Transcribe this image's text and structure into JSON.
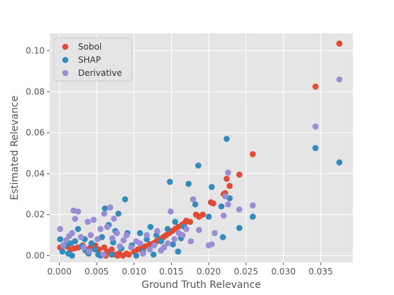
{
  "chart_data": {
    "type": "scatter",
    "xlabel": "Ground Truth Relevance",
    "ylabel": "Estimated Relevance",
    "xlim": [
      -0.0013,
      0.0393
    ],
    "ylim": [
      -0.0033,
      0.1085
    ],
    "x_ticks": [
      0.0,
      0.005,
      0.01,
      0.015,
      0.02,
      0.025,
      0.03,
      0.035
    ],
    "x_tick_labels": [
      "0.000",
      "0.005",
      "0.010",
      "0.015",
      "0.020",
      "0.025",
      "0.030",
      "0.035"
    ],
    "y_ticks": [
      0.0,
      0.02,
      0.04,
      0.06,
      0.08,
      0.1
    ],
    "y_tick_labels": [
      "0.00",
      "0.02",
      "0.04",
      "0.06",
      "0.08",
      "0.10"
    ],
    "grid": true,
    "legend_position": "top-left",
    "background_color": "#e5e5e5",
    "grid_color": "#ffffff",
    "series": [
      {
        "name": "Sobol",
        "color": "#e24a33",
        "points": [
          [
            0.0375,
            0.1035
          ],
          [
            0.0343,
            0.0825
          ],
          [
            0.0259,
            0.0495
          ],
          [
            0.0241,
            0.0395
          ],
          [
            0.0228,
            0.034
          ],
          [
            0.0224,
            0.0375
          ],
          [
            0.0222,
            0.0305
          ],
          [
            0.022,
            0.03
          ],
          [
            0.0203,
            0.026
          ],
          [
            0.0206,
            0.0255
          ],
          [
            0.0192,
            0.02
          ],
          [
            0.0187,
            0.019
          ],
          [
            0.0183,
            0.02
          ],
          [
            0.0175,
            0.0165
          ],
          [
            0.017,
            0.017
          ],
          [
            0.0168,
            0.016
          ],
          [
            0.0164,
            0.015
          ],
          [
            0.0159,
            0.014
          ],
          [
            0.0155,
            0.013
          ],
          [
            0.0151,
            0.012
          ],
          [
            0.0147,
            0.011
          ],
          [
            0.0143,
            0.01
          ],
          [
            0.0139,
            0.009
          ],
          [
            0.0135,
            0.008
          ],
          [
            0.013,
            0.007
          ],
          [
            0.0126,
            0.006
          ],
          [
            0.0121,
            0.0055
          ],
          [
            0.0115,
            0.0045
          ],
          [
            0.011,
            0.004
          ],
          [
            0.0105,
            0.003
          ],
          [
            0.01,
            0.002
          ],
          [
            0.0093,
            0.0005
          ],
          [
            0.009,
            0.001
          ],
          [
            0.0085,
            0.0
          ],
          [
            0.008,
            0.001
          ],
          [
            0.0075,
            0.0005
          ],
          [
            0.007,
            0.003
          ],
          [
            0.0064,
            0.002
          ],
          [
            0.006,
            0.004
          ],
          [
            0.0053,
            0.003
          ],
          [
            0.0048,
            0.005
          ],
          [
            0.0042,
            0.004
          ],
          [
            0.0037,
            0.003
          ],
          [
            0.0031,
            0.005
          ],
          [
            0.0025,
            0.004
          ],
          [
            0.002,
            0.0035
          ],
          [
            0.0015,
            0.003
          ],
          [
            0.001,
            0.0045
          ],
          [
            0.0005,
            0.005
          ],
          [
            0.0001,
            0.004
          ],
          [
            0.0062,
            0.0
          ],
          [
            0.0078,
            0.0
          ]
        ]
      },
      {
        "name": "SHAP",
        "color": "#348abd",
        "points": [
          [
            0.0375,
            0.0455
          ],
          [
            0.0343,
            0.0525
          ],
          [
            0.0259,
            0.019
          ],
          [
            0.0241,
            0.0135
          ],
          [
            0.0228,
            0.028
          ],
          [
            0.0224,
            0.057
          ],
          [
            0.0219,
            0.009
          ],
          [
            0.0217,
            0.024
          ],
          [
            0.0204,
            0.0335
          ],
          [
            0.02,
            0.019
          ],
          [
            0.0186,
            0.044
          ],
          [
            0.0182,
            0.025
          ],
          [
            0.0173,
            0.035
          ],
          [
            0.0167,
            0.014
          ],
          [
            0.0163,
            0.0085
          ],
          [
            0.0159,
            0.002
          ],
          [
            0.0155,
            0.0165
          ],
          [
            0.0152,
            0.0055
          ],
          [
            0.0148,
            0.036
          ],
          [
            0.0145,
            0.013
          ],
          [
            0.014,
            0.004
          ],
          [
            0.0136,
            0.007
          ],
          [
            0.013,
            0.01
          ],
          [
            0.0126,
            0.0005
          ],
          [
            0.0122,
            0.014
          ],
          [
            0.0117,
            0.008
          ],
          [
            0.0112,
            0.002
          ],
          [
            0.0108,
            0.011
          ],
          [
            0.0103,
            0.0
          ],
          [
            0.0097,
            0.005
          ],
          [
            0.0091,
            0.011
          ],
          [
            0.0088,
            0.0275
          ],
          [
            0.0083,
            0.0035
          ],
          [
            0.0079,
            0.0205
          ],
          [
            0.0075,
            0.012
          ],
          [
            0.007,
            0.0005
          ],
          [
            0.0066,
            0.015
          ],
          [
            0.0061,
            0.023
          ],
          [
            0.0057,
            0.009
          ],
          [
            0.0052,
            0.0005
          ],
          [
            0.0048,
            0.003
          ],
          [
            0.0043,
            0.006
          ],
          [
            0.0039,
            0.001
          ],
          [
            0.0034,
            0.008
          ],
          [
            0.003,
            0.0045
          ],
          [
            0.0025,
            0.013
          ],
          [
            0.0021,
            0.007
          ],
          [
            0.0017,
            0.0
          ],
          [
            0.0012,
            0.001
          ],
          [
            0.0008,
            0.005
          ],
          [
            0.0004,
            0.002
          ],
          [
            0.0001,
            0.008
          ],
          [
            0.0015,
            0.006
          ],
          [
            0.0035,
            0.0025
          ],
          [
            0.0055,
            0.0
          ],
          [
            0.0072,
            0.0065
          ]
        ]
      },
      {
        "name": "Derivative",
        "color": "#988ed5",
        "points": [
          [
            0.0375,
            0.086
          ],
          [
            0.0343,
            0.063
          ],
          [
            0.0259,
            0.0245
          ],
          [
            0.0241,
            0.0225
          ],
          [
            0.0226,
            0.0405
          ],
          [
            0.0226,
            0.025
          ],
          [
            0.0222,
            0.029
          ],
          [
            0.022,
            0.0195
          ],
          [
            0.0208,
            0.011
          ],
          [
            0.0204,
            0.0055
          ],
          [
            0.02,
            0.005
          ],
          [
            0.0187,
            0.0125
          ],
          [
            0.0179,
            0.0275
          ],
          [
            0.0176,
            0.007
          ],
          [
            0.017,
            0.013
          ],
          [
            0.0165,
            0.01
          ],
          [
            0.016,
            0.011
          ],
          [
            0.0154,
            0.008
          ],
          [
            0.0149,
            0.0215
          ],
          [
            0.0145,
            0.006
          ],
          [
            0.014,
            0.004
          ],
          [
            0.0136,
            0.0025
          ],
          [
            0.0131,
            0.012
          ],
          [
            0.0127,
            0.005
          ],
          [
            0.0121,
            0.003
          ],
          [
            0.0117,
            0.01
          ],
          [
            0.0112,
            0.001
          ],
          [
            0.0108,
            0.006
          ],
          [
            0.0103,
            0.007
          ],
          [
            0.0096,
            0.004
          ],
          [
            0.009,
            0.01
          ],
          [
            0.0086,
            0.0075
          ],
          [
            0.0081,
            0.0045
          ],
          [
            0.0077,
            0.011
          ],
          [
            0.0073,
            0.018
          ],
          [
            0.0068,
            0.0235
          ],
          [
            0.0064,
            0.014
          ],
          [
            0.006,
            0.0205
          ],
          [
            0.0055,
            0.013
          ],
          [
            0.0051,
            0.008
          ],
          [
            0.0046,
            0.0175
          ],
          [
            0.0042,
            0.01
          ],
          [
            0.0038,
            0.0165
          ],
          [
            0.0033,
            0.004
          ],
          [
            0.0029,
            0.009
          ],
          [
            0.0025,
            0.0215
          ],
          [
            0.0021,
            0.018
          ],
          [
            0.0017,
            0.011
          ],
          [
            0.0013,
            0.0095
          ],
          [
            0.0009,
            0.0075
          ],
          [
            0.0005,
            0.005
          ],
          [
            0.0001,
            0.013
          ],
          [
            0.0019,
            0.022
          ],
          [
            0.004,
            0.002
          ],
          [
            0.0059,
            0.0005
          ],
          [
            0.0071,
            0.0085
          ]
        ]
      }
    ]
  }
}
